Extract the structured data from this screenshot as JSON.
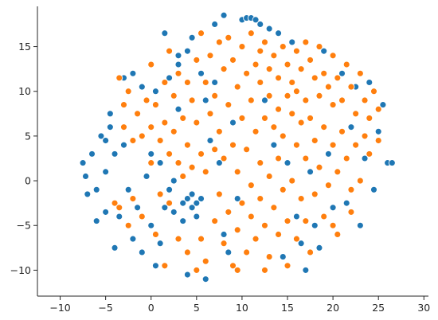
{
  "chart_data": {
    "type": "scatter",
    "title": "",
    "xlabel": "",
    "ylabel": "",
    "xlim": [
      -12.5,
      30.5
    ],
    "ylim": [
      -12.9,
      19.5
    ],
    "x_ticks": [
      -10,
      -5,
      0,
      5,
      10,
      15,
      20,
      25,
      30
    ],
    "y_ticks": [
      -10,
      -5,
      0,
      5,
      10,
      15
    ],
    "grid": false,
    "legend": "none",
    "spines": [
      "left",
      "bottom"
    ],
    "marker_edge_color": "#ffffff",
    "series": [
      {
        "color": "#1f77b4",
        "points": [
          [
            -7.5,
            2.0
          ],
          [
            -7.2,
            0.5
          ],
          [
            -7.0,
            -1.5
          ],
          [
            -6.5,
            3.0
          ],
          [
            -6.0,
            -1.0
          ],
          [
            -5.5,
            5.0
          ],
          [
            -5.0,
            4.5
          ],
          [
            -5.0,
            1.0
          ],
          [
            -5.0,
            -3.5
          ],
          [
            -4.5,
            7.5
          ],
          [
            -4.5,
            6.0
          ],
          [
            -4.0,
            3.0
          ],
          [
            -4.0,
            -7.5
          ],
          [
            -3.5,
            -4.0
          ],
          [
            -3.0,
            8.5
          ],
          [
            -3.0,
            4.0
          ],
          [
            -2.5,
            -1.0
          ],
          [
            -2.0,
            12.0
          ],
          [
            -2.0,
            -6.5
          ],
          [
            -1.5,
            -3.0
          ],
          [
            -1.0,
            10.5
          ],
          [
            -1.0,
            -8.0
          ],
          [
            -0.5,
            0.5
          ],
          [
            0.0,
            3.0
          ],
          [
            0.0,
            -5.0
          ],
          [
            0.5,
            10.0
          ],
          [
            0.5,
            -9.5
          ],
          [
            1.0,
            2.0
          ],
          [
            1.5,
            16.5
          ],
          [
            1.5,
            -3.0
          ],
          [
            2.0,
            -1.0
          ],
          [
            2.5,
            0.0
          ],
          [
            2.5,
            -3.5
          ],
          [
            3.0,
            14.0
          ],
          [
            3.0,
            13.0
          ],
          [
            3.0,
            8.0
          ],
          [
            3.5,
            -2.5
          ],
          [
            3.5,
            -4.5
          ],
          [
            4.0,
            14.5
          ],
          [
            4.0,
            -2.0
          ],
          [
            4.0,
            -10.5
          ],
          [
            4.5,
            16.0
          ],
          [
            4.5,
            -3.0
          ],
          [
            4.5,
            -1.5
          ],
          [
            5.0,
            -2.5
          ],
          [
            5.0,
            -4.0
          ],
          [
            5.5,
            12.0
          ],
          [
            5.5,
            -2.0
          ],
          [
            6.0,
            9.0
          ],
          [
            6.0,
            -11.0
          ],
          [
            6.5,
            4.5
          ],
          [
            7.0,
            17.5
          ],
          [
            7.0,
            11.0
          ],
          [
            7.5,
            2.0
          ],
          [
            8.0,
            18.5
          ],
          [
            8.5,
            -8.0
          ],
          [
            9.0,
            6.5
          ],
          [
            9.5,
            -2.0
          ],
          [
            10.0,
            18.0
          ],
          [
            10.5,
            18.2
          ],
          [
            11.0,
            18.2
          ],
          [
            11.5,
            18.0
          ],
          [
            12.0,
            17.5
          ],
          [
            12.5,
            9.0
          ],
          [
            13.0,
            17.0
          ],
          [
            13.5,
            4.0
          ],
          [
            14.0,
            16.5
          ],
          [
            14.5,
            -8.5
          ],
          [
            15.0,
            2.0
          ],
          [
            15.5,
            15.5
          ],
          [
            16.0,
            -4.0
          ],
          [
            16.5,
            -7.0
          ],
          [
            17.0,
            -10.0
          ],
          [
            17.5,
            1.0
          ],
          [
            18.0,
            -5.0
          ],
          [
            18.5,
            -7.5
          ],
          [
            19.0,
            14.5
          ],
          [
            19.5,
            3.0
          ],
          [
            20.0,
            -3.0
          ],
          [
            21.0,
            12.0
          ],
          [
            21.5,
            -2.5
          ],
          [
            22.0,
            6.0
          ],
          [
            22.5,
            10.5
          ],
          [
            23.0,
            -5.0
          ],
          [
            23.5,
            2.5
          ],
          [
            24.0,
            11.0
          ],
          [
            24.5,
            -1.0
          ],
          [
            25.0,
            5.5
          ],
          [
            25.5,
            8.5
          ],
          [
            26.0,
            2.0
          ],
          [
            26.5,
            2.0
          ],
          [
            -6.0,
            -4.5
          ],
          [
            -3.0,
            11.5
          ],
          [
            1.0,
            -7.0
          ],
          [
            2.0,
            11.5
          ],
          [
            8.0,
            -6.0
          ]
        ]
      },
      {
        "color": "#ff7f0e",
        "points": [
          [
            -3.5,
            11.5
          ],
          [
            -3.0,
            8.5
          ],
          [
            -3.0,
            6.0
          ],
          [
            -2.5,
            10.0
          ],
          [
            -2.0,
            4.5
          ],
          [
            -2.0,
            -2.0
          ],
          [
            -1.5,
            7.5
          ],
          [
            -1.0,
            5.0
          ],
          [
            -1.0,
            -4.0
          ],
          [
            -0.5,
            9.0
          ],
          [
            0.0,
            13.0
          ],
          [
            0.0,
            6.0
          ],
          [
            0.0,
            2.0
          ],
          [
            0.5,
            8.5
          ],
          [
            0.5,
            -6.0
          ],
          [
            1.0,
            4.5
          ],
          [
            1.0,
            -1.5
          ],
          [
            1.5,
            11.0
          ],
          [
            1.5,
            6.5
          ],
          [
            2.0,
            14.5
          ],
          [
            2.0,
            3.0
          ],
          [
            2.0,
            -2.5
          ],
          [
            2.5,
            9.5
          ],
          [
            2.5,
            5.5
          ],
          [
            3.0,
            12.0
          ],
          [
            3.0,
            2.0
          ],
          [
            3.0,
            -6.5
          ],
          [
            3.5,
            7.0
          ],
          [
            3.5,
            0.5
          ],
          [
            4.0,
            11.0
          ],
          [
            4.0,
            4.0
          ],
          [
            4.0,
            -8.0
          ],
          [
            4.5,
            9.0
          ],
          [
            4.5,
            1.5
          ],
          [
            5.0,
            13.5
          ],
          [
            5.0,
            6.5
          ],
          [
            5.5,
            16.5
          ],
          [
            5.5,
            3.0
          ],
          [
            5.5,
            -6.5
          ],
          [
            6.0,
            11.0
          ],
          [
            6.0,
            1.0
          ],
          [
            6.0,
            -9.0
          ],
          [
            6.5,
            14.0
          ],
          [
            6.5,
            7.5
          ],
          [
            7.0,
            9.5
          ],
          [
            7.0,
            3.5
          ],
          [
            7.0,
            -4.5
          ],
          [
            7.5,
            15.5
          ],
          [
            7.5,
            5.5
          ],
          [
            7.5,
            -1.5
          ],
          [
            8.0,
            12.5
          ],
          [
            8.0,
            2.5
          ],
          [
            8.0,
            -7.0
          ],
          [
            8.5,
            16.0
          ],
          [
            8.5,
            8.5
          ],
          [
            8.5,
            -3.5
          ],
          [
            9.0,
            13.5
          ],
          [
            9.0,
            4.0
          ],
          [
            9.0,
            -9.5
          ],
          [
            9.5,
            10.5
          ],
          [
            9.5,
            1.0
          ],
          [
            9.5,
            -5.5
          ],
          [
            10.0,
            15.0
          ],
          [
            10.0,
            7.0
          ],
          [
            10.0,
            -2.5
          ],
          [
            10.5,
            12.0
          ],
          [
            10.5,
            3.5
          ],
          [
            10.5,
            -8.0
          ],
          [
            11.0,
            16.5
          ],
          [
            11.0,
            9.0
          ],
          [
            11.0,
            -0.5
          ],
          [
            11.0,
            -4.0
          ],
          [
            11.5,
            13.0
          ],
          [
            11.5,
            5.5
          ],
          [
            11.5,
            -6.5
          ],
          [
            12.0,
            14.5
          ],
          [
            12.0,
            11.0
          ],
          [
            12.0,
            2.0
          ],
          [
            12.0,
            -2.0
          ],
          [
            12.5,
            15.5
          ],
          [
            12.5,
            7.0
          ],
          [
            12.5,
            -5.0
          ],
          [
            13.0,
            12.5
          ],
          [
            13.0,
            9.5
          ],
          [
            13.0,
            0.5
          ],
          [
            13.0,
            -8.5
          ],
          [
            13.5,
            14.0
          ],
          [
            13.5,
            6.0
          ],
          [
            13.5,
            -3.0
          ],
          [
            14.0,
            11.5
          ],
          [
            14.0,
            8.0
          ],
          [
            14.0,
            2.5
          ],
          [
            14.0,
            -6.0
          ],
          [
            14.5,
            15.0
          ],
          [
            14.5,
            5.0
          ],
          [
            14.5,
            -1.0
          ],
          [
            15.0,
            13.0
          ],
          [
            15.0,
            9.5
          ],
          [
            15.0,
            -4.5
          ],
          [
            15.0,
            -9.5
          ],
          [
            15.5,
            11.0
          ],
          [
            15.5,
            7.5
          ],
          [
            15.5,
            0.0
          ],
          [
            16.0,
            14.5
          ],
          [
            16.0,
            10.0
          ],
          [
            16.0,
            4.0
          ],
          [
            16.0,
            -6.5
          ],
          [
            16.5,
            12.5
          ],
          [
            16.5,
            6.5
          ],
          [
            16.5,
            -2.0
          ],
          [
            17.0,
            15.5
          ],
          [
            17.0,
            9.0
          ],
          [
            17.0,
            2.5
          ],
          [
            17.0,
            -4.5
          ],
          [
            17.5,
            13.5
          ],
          [
            17.5,
            7.0
          ],
          [
            17.5,
            -8.0
          ],
          [
            18.0,
            11.5
          ],
          [
            18.0,
            4.5
          ],
          [
            18.0,
            -1.5
          ],
          [
            18.5,
            15.0
          ],
          [
            18.5,
            9.5
          ],
          [
            18.5,
            1.5
          ],
          [
            19.0,
            12.0
          ],
          [
            19.0,
            6.0
          ],
          [
            19.0,
            -4.0
          ],
          [
            19.5,
            10.5
          ],
          [
            19.5,
            -0.5
          ],
          [
            20.0,
            14.0
          ],
          [
            20.0,
            8.5
          ],
          [
            20.0,
            4.0
          ],
          [
            20.5,
            11.5
          ],
          [
            20.5,
            1.0
          ],
          [
            20.5,
            -6.0
          ],
          [
            21.0,
            9.0
          ],
          [
            21.0,
            5.5
          ],
          [
            21.5,
            13.0
          ],
          [
            21.5,
            2.5
          ],
          [
            22.0,
            10.5
          ],
          [
            22.0,
            -1.0
          ],
          [
            22.5,
            7.5
          ],
          [
            22.5,
            4.0
          ],
          [
            23.0,
            12.0
          ],
          [
            23.0,
            0.0
          ],
          [
            23.5,
            9.0
          ],
          [
            23.5,
            5.0
          ],
          [
            24.0,
            7.0
          ],
          [
            24.0,
            3.0
          ],
          [
            24.5,
            10.0
          ],
          [
            25.0,
            4.5
          ],
          [
            25.0,
            8.0
          ],
          [
            -4.0,
            -2.5
          ],
          [
            -3.5,
            -3.0
          ],
          [
            -2.5,
            -5.0
          ],
          [
            1.5,
            -9.5
          ],
          [
            5.0,
            -10.0
          ],
          [
            9.5,
            -10.0
          ],
          [
            12.5,
            -10.0
          ],
          [
            20.0,
            -5.0
          ],
          [
            22.0,
            -3.5
          ]
        ]
      }
    ]
  }
}
